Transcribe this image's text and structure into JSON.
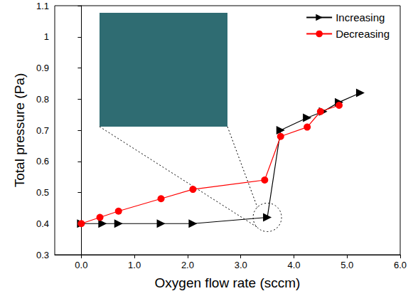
{
  "chart_data": {
    "type": "line",
    "x_label": "Oxygen flow rate (sccm)",
    "y_label": "Total pressure (Pa)",
    "xlim": [
      -0.5,
      6.0
    ],
    "xticks": [
      {
        "value": 0,
        "label": "0.0"
      },
      {
        "value": 1,
        "label": "1.0"
      },
      {
        "value": 2,
        "label": "2.0"
      },
      {
        "value": 3,
        "label": "3.0"
      },
      {
        "value": 4,
        "label": "4.0"
      },
      {
        "value": 5,
        "label": "5.0"
      },
      {
        "value": 6,
        "label": "6.0"
      }
    ],
    "ylim": [
      0.3,
      1.1
    ],
    "yticks": [
      0.3,
      0.4,
      0.5,
      0.6,
      0.7,
      0.8,
      0.9,
      1.0,
      1.1
    ],
    "grid": false,
    "legend": "top-right",
    "series": [
      {
        "name": "Increasing",
        "color": "#000000",
        "marker": "triangle-right",
        "x": [
          0.0,
          0.4,
          0.7,
          1.5,
          2.1,
          3.5,
          3.75,
          4.25,
          4.55,
          4.85,
          5.25
        ],
        "values": [
          0.4,
          0.4,
          0.4,
          0.4,
          0.4,
          0.42,
          0.7,
          0.74,
          0.76,
          0.79,
          0.82
        ]
      },
      {
        "name": "Decreasing",
        "color": "#ff0000",
        "marker": "circle",
        "x": [
          0.0,
          0.35,
          0.7,
          1.5,
          2.1,
          3.45,
          3.75,
          4.25,
          4.5,
          4.85
        ],
        "values": [
          0.4,
          0.42,
          0.44,
          0.48,
          0.51,
          0.54,
          0.68,
          0.71,
          0.76,
          0.78
        ]
      }
    ]
  }
}
